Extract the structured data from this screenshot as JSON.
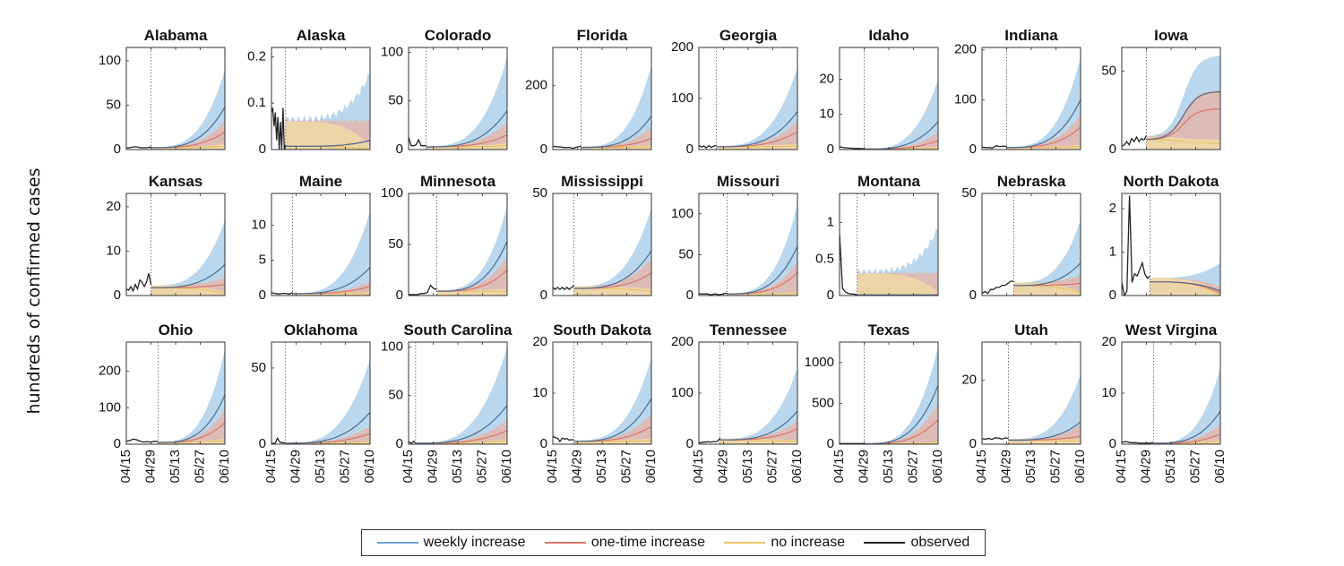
{
  "figure": {
    "ylabel": "hundreds of confirmed cases",
    "colors": {
      "weekly": "#6fa3cf",
      "weekly_band": "#a9cde9",
      "onetime": "#d9766b",
      "onetime_band": "#e8b3a5",
      "noinc": "#e9c46a",
      "noinc_band": "#efd9a6",
      "observed": "#222222",
      "axis": "#333333"
    }
  },
  "legend": {
    "items": [
      {
        "label": "weekly increase",
        "color": "#6fa3cf"
      },
      {
        "label": "one-time increase",
        "color": "#d9766b"
      },
      {
        "label": "no increase",
        "color": "#e9c46a"
      },
      {
        "label": "observed",
        "color": "#222222"
      }
    ]
  },
  "chart_data": {
    "type": "line",
    "title": "",
    "xlabel": "",
    "ylabel": "hundreds of confirmed cases",
    "x_ticks": [
      "04/15",
      "04/29",
      "05/13",
      "05/27",
      "06/10"
    ],
    "x_range_days": [
      0,
      56
    ],
    "series_names": [
      "weekly increase",
      "one-time increase",
      "no increase",
      "observed"
    ],
    "legend_position": "bottom-center",
    "panels": [
      {
        "state": "Alabama",
        "ylim": [
          0,
          115
        ],
        "yticks": [
          0,
          50,
          100
        ],
        "yticklabels": [
          "0",
          "50",
          "100"
        ],
        "split_day": 14,
        "obs": [
          2,
          2,
          3,
          3,
          2,
          2,
          2,
          3
        ],
        "end": {
          "weekly": 48,
          "weekly_hi": 90,
          "onetime": 20,
          "onetime_hi": 32,
          "noinc": 4
        },
        "shape": "exp"
      },
      {
        "state": "Alaska",
        "ylim": [
          0,
          0.22
        ],
        "yticks": [
          0,
          0.1,
          0.2
        ],
        "yticklabels": [
          "0",
          "0.1",
          "0.2"
        ],
        "split_day": 8,
        "obs": [
          0.08,
          0.09,
          0.05,
          0.08,
          0.02,
          0.07,
          0.0,
          0.06,
          0.0,
          0.09,
          0.0,
          0.01
        ],
        "end": {
          "weekly": 0.02,
          "weekly_hi": 0.16,
          "onetime": 0.02,
          "onetime_hi": 0.06,
          "noinc": 0.0
        },
        "shape": "noisy"
      },
      {
        "state": "Colorado",
        "ylim": [
          0,
          105
        ],
        "yticks": [
          0,
          50,
          100
        ],
        "yticklabels": [
          "0",
          "50",
          "100"
        ],
        "split_day": 10,
        "obs": [
          13,
          4,
          4,
          5,
          10,
          4,
          4,
          4
        ],
        "end": {
          "weekly": 40,
          "weekly_hi": 95,
          "onetime": 15,
          "onetime_hi": 28,
          "noinc": 4
        },
        "shape": "exp"
      },
      {
        "state": "Florida",
        "ylim": [
          0,
          320
        ],
        "yticks": [
          0,
          200
        ],
        "yticklabels": [
          "0",
          "200"
        ],
        "split_day": 16,
        "obs": [
          10,
          9,
          8,
          6,
          7,
          4,
          8,
          10
        ],
        "end": {
          "weekly": 105,
          "weekly_hi": 265,
          "onetime": 35,
          "onetime_hi": 70,
          "noinc": 8
        },
        "shape": "exp"
      },
      {
        "state": "Georgia",
        "ylim": [
          0,
          200
        ],
        "yticks": [
          0,
          100,
          200
        ],
        "yticklabels": [
          "0",
          "100",
          "200"
        ],
        "split_day": 10,
        "obs": [
          8,
          5,
          7,
          3,
          8,
          4,
          7,
          8
        ],
        "end": {
          "weekly": 75,
          "weekly_hi": 160,
          "onetime": 35,
          "onetime_hi": 55,
          "noinc": 7
        },
        "shape": "exp"
      },
      {
        "state": "Idaho",
        "ylim": [
          0,
          29
        ],
        "yticks": [
          0,
          10,
          20
        ],
        "yticklabels": [
          "0",
          "10",
          "20"
        ],
        "split_day": 14,
        "obs": [
          0.8,
          0.5,
          0.4,
          0.3,
          0.3,
          0.2
        ],
        "end": {
          "weekly": 8,
          "weekly_hi": 20,
          "onetime": 2.5,
          "onetime_hi": 5,
          "noinc": 0.3
        },
        "shape": "exp"
      },
      {
        "state": "Indiana",
        "ylim": [
          0,
          205
        ],
        "yticks": [
          0,
          100,
          200
        ],
        "yticklabels": [
          "0",
          "100",
          "200"
        ],
        "split_day": 14,
        "obs": [
          5,
          4,
          4,
          3,
          8,
          6,
          7,
          6
        ],
        "end": {
          "weekly": 100,
          "weekly_hi": 185,
          "onetime": 45,
          "onetime_hi": 70,
          "noinc": 6
        },
        "shape": "exp"
      },
      {
        "state": "Iowa",
        "ylim": [
          0,
          65
        ],
        "yticks": [
          0,
          50
        ],
        "yticklabels": [
          "0",
          "50"
        ],
        "split_day": 14,
        "obs": [
          2,
          3,
          5,
          3,
          7,
          5,
          8,
          5,
          7,
          6,
          9
        ],
        "end": {
          "weekly": 37,
          "weekly_hi": 60,
          "onetime": 26,
          "onetime_hi": 38,
          "noinc": 4
        },
        "shape": "sigmoid"
      },
      {
        "state": "Kansas",
        "ylim": [
          0,
          23
        ],
        "yticks": [
          0,
          10,
          20
        ],
        "yticklabels": [
          "0",
          "10",
          "20"
        ],
        "split_day": 14,
        "obs": [
          1.5,
          1.2,
          2,
          1,
          2.5,
          1.5,
          3.5,
          3,
          2,
          3,
          5,
          2.5
        ],
        "end": {
          "weekly": 7,
          "weekly_hi": 17,
          "onetime": 2.5,
          "onetime_hi": 4,
          "noinc": 0.5
        },
        "shape": "exp"
      },
      {
        "state": "Maine",
        "ylim": [
          0,
          14.5
        ],
        "yticks": [
          0,
          5,
          10
        ],
        "yticklabels": [
          "0",
          "5",
          "10"
        ],
        "split_day": 12,
        "obs": [
          0.4,
          0.3,
          0.2,
          0.3,
          0.3,
          0.2,
          0.4
        ],
        "end": {
          "weekly": 4,
          "weekly_hi": 12,
          "onetime": 1.3,
          "onetime_hi": 2,
          "noinc": 0.3
        },
        "shape": "exp"
      },
      {
        "state": "Minnesota",
        "ylim": [
          0,
          100
        ],
        "yticks": [
          0,
          50,
          100
        ],
        "yticklabels": [
          "0",
          "50",
          "100"
        ],
        "split_day": 16,
        "obs": [
          1,
          1,
          1,
          1,
          2,
          2,
          3,
          10,
          7,
          6
        ],
        "end": {
          "weekly": 53,
          "weekly_hi": 88,
          "onetime": 25,
          "onetime_hi": 38,
          "noinc": 4
        },
        "shape": "exp"
      },
      {
        "state": "Mississippi",
        "ylim": [
          0,
          50
        ],
        "yticks": [
          0,
          50
        ],
        "yticklabels": [
          "0",
          "50"
        ],
        "split_day": 12,
        "obs": [
          4,
          3,
          4,
          3,
          4,
          3,
          4,
          3,
          4,
          5
        ],
        "end": {
          "weekly": 22,
          "weekly_hi": 43,
          "onetime": 11,
          "onetime_hi": 18,
          "noinc": 2
        },
        "shape": "exp"
      },
      {
        "state": "Missouri",
        "ylim": [
          0,
          125
        ],
        "yticks": [
          0,
          50,
          100
        ],
        "yticklabels": [
          "0",
          "50",
          "100"
        ],
        "split_day": 16,
        "obs": [
          2,
          2,
          2,
          1,
          2,
          1,
          2,
          3
        ],
        "end": {
          "weekly": 60,
          "weekly_hi": 112,
          "onetime": 28,
          "onetime_hi": 42,
          "noinc": 3
        },
        "shape": "exp"
      },
      {
        "state": "Montana",
        "ylim": [
          0,
          1.4
        ],
        "yticks": [
          0,
          0.5,
          1
        ],
        "yticklabels": [
          "0",
          "0.5",
          "1"
        ],
        "split_day": 10,
        "obs": [
          0.85,
          0.1,
          0.05,
          0.03,
          0.02,
          0.02,
          0.01
        ],
        "end": {
          "weekly": 0.01,
          "weekly_hi": 0.9,
          "onetime": 0.01,
          "onetime_hi": 0.3,
          "noinc": 0.0
        },
        "shape": "flatband"
      },
      {
        "state": "Nebraska",
        "ylim": [
          0,
          50
        ],
        "yticks": [
          0,
          50
        ],
        "yticklabels": [
          "0",
          "50"
        ],
        "split_day": 18,
        "obs": [
          1,
          2,
          1,
          3,
          3,
          4,
          4,
          5,
          5,
          6,
          7,
          7
        ],
        "end": {
          "weekly": 16,
          "weekly_hi": 37,
          "onetime": 6,
          "onetime_hi": 10,
          "noinc": 1
        },
        "shape": "exp"
      },
      {
        "state": "North Dakota",
        "ylim": [
          0,
          2.35
        ],
        "yticks": [
          0,
          1,
          2
        ],
        "yticklabels": [
          "0",
          "1",
          "2"
        ],
        "split_day": 16,
        "obs": [
          0.3,
          0.0,
          0.1,
          2.3,
          0.3,
          0.5,
          0.45,
          0.6,
          0.75,
          0.5,
          0.4,
          0.45
        ],
        "end": {
          "weekly": 0.1,
          "weekly_hi": 0.75,
          "onetime": 0.05,
          "onetime_hi": 0.2,
          "noinc": 0.0
        },
        "shape": "exp"
      },
      {
        "state": "Ohio",
        "ylim": [
          0,
          280
        ],
        "yticks": [
          0,
          100,
          200
        ],
        "yticklabels": [
          "0",
          "100",
          "200"
        ],
        "split_day": 18,
        "obs": [
          8,
          10,
          14,
          12,
          8,
          6,
          7,
          6,
          8,
          7
        ],
        "end": {
          "weekly": 135,
          "weekly_hi": 260,
          "onetime": 60,
          "onetime_hi": 95,
          "noinc": 10
        },
        "shape": "exp"
      },
      {
        "state": "Oklahoma",
        "ylim": [
          0,
          67
        ],
        "yticks": [
          0,
          50
        ],
        "yticklabels": [
          "0",
          "50"
        ],
        "split_day": 8,
        "obs": [
          0.5,
          0.5,
          1,
          4,
          1.5,
          1,
          1,
          1
        ],
        "end": {
          "weekly": 21,
          "weekly_hi": 56,
          "onetime": 7,
          "onetime_hi": 12,
          "noinc": 1
        },
        "shape": "exp"
      },
      {
        "state": "South Carolina",
        "ylim": [
          0,
          105
        ],
        "yticks": [
          0,
          50,
          100
        ],
        "yticklabels": [
          "0",
          "50",
          "100"
        ],
        "split_day": 4,
        "obs": [
          2,
          2,
          1.5,
          1,
          2,
          3,
          2,
          1.5
        ],
        "end": {
          "weekly": 40,
          "weekly_hi": 100,
          "onetime": 14,
          "onetime_hi": 25,
          "noinc": 3
        },
        "shape": "exp"
      },
      {
        "state": "South Dakota",
        "ylim": [
          0,
          20
        ],
        "yticks": [
          0,
          10,
          20
        ],
        "yticklabels": [
          "0",
          "10",
          "20"
        ],
        "split_day": 12,
        "obs": [
          1.5,
          1.3,
          1.2,
          0.5,
          1.2,
          1.0,
          1.1,
          0.8,
          0.9,
          0.8
        ],
        "end": {
          "weekly": 9,
          "weekly_hi": 17,
          "onetime": 3.5,
          "onetime_hi": 6,
          "noinc": 0.7
        },
        "shape": "exp"
      },
      {
        "state": "Tennessee",
        "ylim": [
          0,
          200
        ],
        "yticks": [
          0,
          100,
          200
        ],
        "yticklabels": [
          "0",
          "100",
          "200"
        ],
        "split_day": 12,
        "obs": [
          3,
          3,
          4,
          4,
          5,
          4,
          5,
          5,
          6,
          12
        ],
        "end": {
          "weekly": 65,
          "weekly_hi": 150,
          "onetime": 30,
          "onetime_hi": 45,
          "noinc": 5
        },
        "shape": "exp"
      },
      {
        "state": "Texas",
        "ylim": [
          0,
          1250
        ],
        "yticks": [
          0,
          500,
          1000
        ],
        "yticklabels": [
          "0",
          "500",
          "1000"
        ],
        "split_day": 14,
        "obs": [
          8,
          8,
          8,
          8,
          8,
          8,
          8,
          8
        ],
        "end": {
          "weekly": 720,
          "weekly_hi": 1200,
          "onetime": 300,
          "onetime_hi": 500,
          "noinc": 20
        },
        "shape": "exp"
      },
      {
        "state": "Utah",
        "ylim": [
          0,
          32
        ],
        "yticks": [
          0,
          20
        ],
        "yticklabels": [
          "0",
          "20"
        ],
        "split_day": 15,
        "obs": [
          1.7,
          1.6,
          1.8,
          1.5,
          2,
          1.9,
          1.6,
          2,
          1.8
        ],
        "end": {
          "weekly": 7,
          "weekly_hi": 22,
          "onetime": 2.5,
          "onetime_hi": 6,
          "noinc": 1
        },
        "shape": "exp"
      },
      {
        "state": "West Virgina",
        "ylim": [
          0,
          20
        ],
        "yticks": [
          0,
          10,
          20
        ],
        "yticklabels": [
          "0",
          "10",
          "20"
        ],
        "split_day": 18,
        "obs": [
          0.4,
          0.5,
          0.3,
          0.3,
          0.2,
          0.2,
          0.2,
          0.3
        ],
        "end": {
          "weekly": 6.5,
          "weekly_hi": 15,
          "onetime": 2,
          "onetime_hi": 4,
          "noinc": 0.5
        },
        "shape": "exp"
      }
    ]
  }
}
